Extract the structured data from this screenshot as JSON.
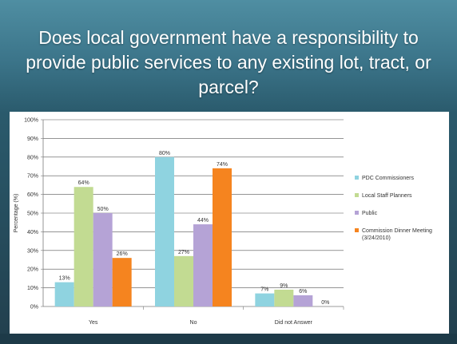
{
  "slide": {
    "title": "Does local government have a responsibility to provide public services to any existing lot, tract, or parcel?"
  },
  "chart_data": {
    "type": "bar",
    "title": "",
    "xlabel": "",
    "ylabel": "Percentage (%)",
    "ylim": [
      0,
      100
    ],
    "y_ticks": [
      "0%",
      "10%",
      "20%",
      "30%",
      "40%",
      "50%",
      "60%",
      "70%",
      "80%",
      "90%",
      "100%"
    ],
    "categories": [
      "Yes",
      "No",
      "Did not Answer"
    ],
    "series": [
      {
        "name": "PDC Commissioners",
        "values": [
          13,
          80,
          7
        ],
        "labels": [
          "13%",
          "80%",
          "7%"
        ],
        "color": "#8fd3e0"
      },
      {
        "name": "Local Staff Planners",
        "values": [
          64,
          27,
          9
        ],
        "labels": [
          "64%",
          "27%",
          "9%"
        ],
        "color": "#c2db92"
      },
      {
        "name": "Public",
        "values": [
          50,
          44,
          6
        ],
        "labels": [
          "50%",
          "44%",
          "6%"
        ],
        "color": "#b5a3d6"
      },
      {
        "name": "Commission Dinner Meeting\n(3/24/2010)",
        "values": [
          26,
          74,
          0
        ],
        "labels": [
          "26%",
          "74%",
          "0%"
        ],
        "color": "#f5841f"
      }
    ],
    "grid": true,
    "legend_position": "right"
  }
}
